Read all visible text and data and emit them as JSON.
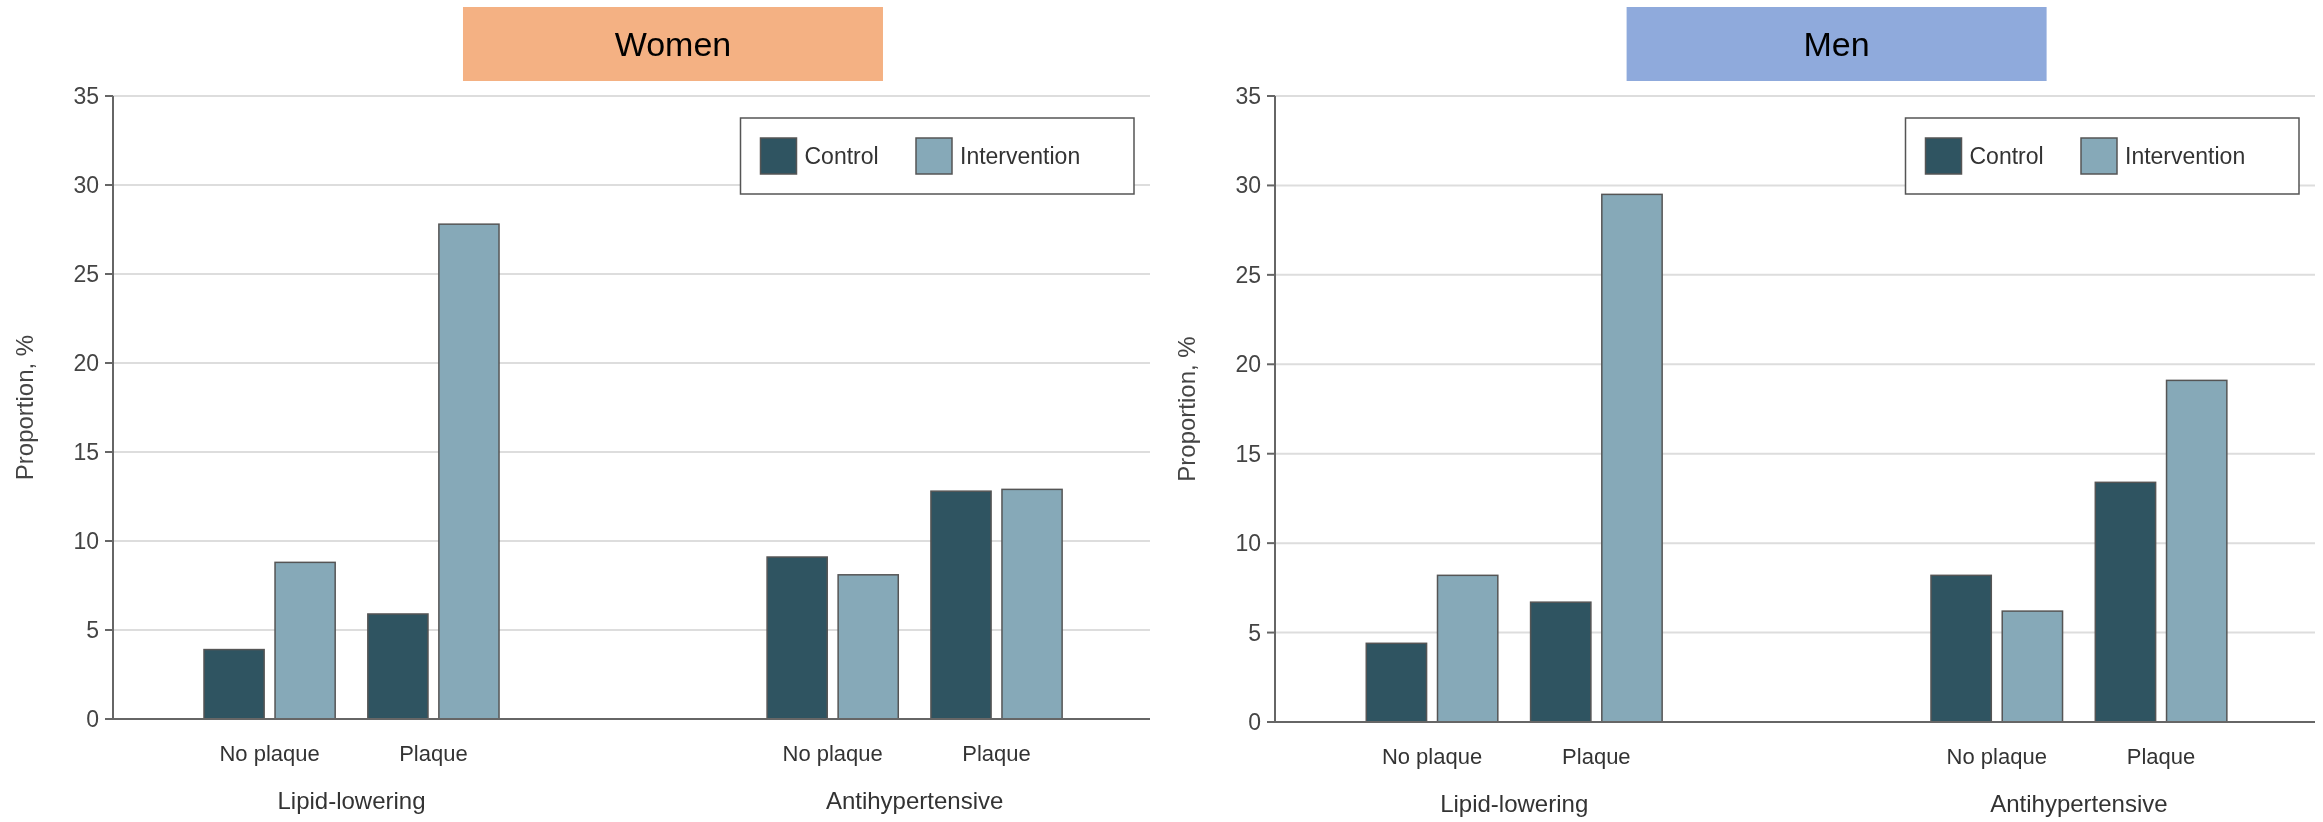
{
  "chart_data": [
    {
      "type": "bar",
      "title": "Women",
      "ylabel": "Proportion, %",
      "categories": [
        "No plaque",
        "Plaque",
        "No plaque",
        "Plaque"
      ],
      "annotations": [
        "Lipid-lowering",
        "Antihypertensive"
      ],
      "series": [
        {
          "name": "Control",
          "color": "#2f5461",
          "values": [
            3.9,
            5.9,
            9.1,
            12.8
          ]
        },
        {
          "name": "Intervention",
          "color": "#86a9b8",
          "values": [
            8.8,
            27.8,
            8.1,
            12.9
          ]
        }
      ],
      "ylim": [
        0,
        35
      ],
      "yticks": [
        0,
        5,
        10,
        15,
        20,
        25,
        30,
        35
      ],
      "grid": "y",
      "legend": "top right"
    },
    {
      "type": "bar",
      "title": "Men",
      "ylabel": "Proportion, %",
      "categories": [
        "No plaque",
        "Plaque",
        "No plaque",
        "Plaque"
      ],
      "annotations": [
        "Lipid-lowering",
        "Antihypertensive"
      ],
      "series": [
        {
          "name": "Control",
          "color": "#2f5461",
          "values": [
            4.4,
            6.7,
            8.2,
            13.4
          ]
        },
        {
          "name": "Intervention",
          "color": "#86a9b8",
          "values": [
            8.2,
            29.5,
            6.2,
            19.1
          ]
        }
      ],
      "ylim": [
        0,
        35
      ],
      "yticks": [
        0,
        5,
        10,
        15,
        20,
        25,
        30,
        35
      ],
      "grid": "y",
      "legend": "top right"
    }
  ]
}
